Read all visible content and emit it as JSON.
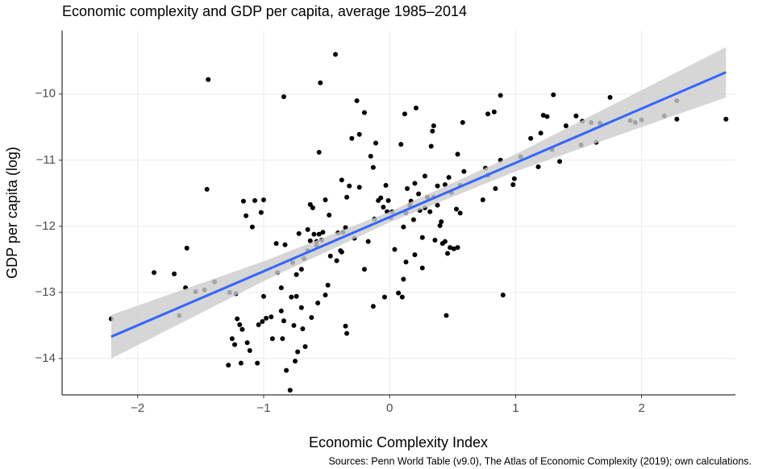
{
  "chart_data": {
    "type": "scatter",
    "title": "Economic complexity and GDP per capita, average 1985–2014",
    "x_label": "Economic Complexity Index",
    "y_label": "GDP per capita (log)",
    "caption": "Sources: Penn World Table (v9.0), The Atlas of Economic Complexity (2019); own calculations.",
    "xlim": [
      -2.6,
      2.745
    ],
    "ylim": [
      -14.55,
      -9.04
    ],
    "xticks": [
      {
        "value": -2,
        "label": "−2"
      },
      {
        "value": -1,
        "label": "−1"
      },
      0,
      1,
      2
    ],
    "yticks": [
      {
        "value": -10,
        "label": "−10"
      },
      {
        "value": -11,
        "label": "−11"
      },
      {
        "value": -12,
        "label": "−12"
      },
      {
        "value": -13,
        "label": "−13"
      },
      {
        "value": -14,
        "label": "−14"
      }
    ],
    "grid": true,
    "points": {
      "color": "#000000",
      "x": [
        -2.21,
        -1.87,
        -1.71,
        -1.67,
        -1.62,
        -1.61,
        -1.54,
        -1.47,
        -1.45,
        -1.39,
        -1.44,
        -1.28,
        -1.27,
        -1.25,
        -1.23,
        -1.22,
        -1.21,
        -1.19,
        -1.18,
        -1.17,
        -1.16,
        -1.14,
        -1.13,
        -1.11,
        -1.09,
        -1.07,
        -1.05,
        -1.04,
        -1.02,
        -1.0,
        -1.0,
        -1.01,
        -0.98,
        -0.94,
        -0.93,
        -0.9,
        -0.89,
        -0.86,
        -0.86,
        -0.85,
        -0.84,
        -0.84,
        -0.83,
        -0.82,
        -0.79,
        -0.78,
        -0.77,
        -0.76,
        -0.75,
        -0.74,
        -0.74,
        -0.73,
        -0.72,
        -0.7,
        -0.7,
        -0.69,
        -0.68,
        -0.67,
        -0.65,
        -0.65,
        -0.63,
        -0.63,
        -0.62,
        -0.61,
        -0.6,
        -0.58,
        -0.58,
        -0.57,
        -0.56,
        -0.55,
        -0.56,
        -0.54,
        -0.53,
        -0.51,
        -0.51,
        -0.49,
        -0.48,
        -0.47,
        -0.43,
        -0.42,
        -0.41,
        -0.39,
        -0.38,
        -0.38,
        -0.37,
        -0.35,
        -0.35,
        -0.34,
        -0.34,
        -0.32,
        -0.3,
        -0.28,
        -0.26,
        -0.24,
        -0.24,
        -0.2,
        -0.2,
        -0.17,
        -0.15,
        -0.13,
        -0.13,
        -0.12,
        -0.11,
        -0.09,
        -0.07,
        -0.05,
        -0.04,
        -0.03,
        -0.02,
        -0.01,
        0.01,
        0.02,
        0.04,
        0.07,
        0.09,
        0.1,
        0.11,
        0.11,
        0.12,
        0.13,
        0.13,
        0.14,
        0.16,
        0.17,
        0.19,
        0.2,
        0.2,
        0.21,
        0.23,
        0.24,
        0.26,
        0.26,
        0.28,
        0.28,
        0.3,
        0.32,
        0.33,
        0.34,
        0.35,
        0.35,
        0.36,
        0.38,
        0.38,
        0.4,
        0.41,
        0.42,
        0.44,
        0.44,
        0.45,
        0.46,
        0.47,
        0.48,
        0.49,
        0.51,
        0.53,
        0.54,
        0.54,
        0.56,
        0.56,
        0.58,
        0.59,
        0.74,
        0.76,
        0.78,
        0.78,
        0.83,
        0.84,
        0.88,
        0.88,
        0.9,
        0.98,
        0.99,
        1.04,
        1.12,
        1.18,
        1.2,
        1.22,
        1.25,
        1.29,
        1.3,
        1.35,
        1.4,
        1.48,
        1.52,
        1.53,
        1.6,
        1.64,
        1.67,
        1.75,
        1.91,
        1.95,
        2.0,
        2.18,
        2.28,
        2.28,
        2.67
      ],
      "y": [
        -13.4,
        -12.7,
        -12.72,
        -13.35,
        -12.93,
        -12.33,
        -12.99,
        -12.96,
        -11.44,
        -12.84,
        -9.78,
        -14.1,
        -13.0,
        -13.7,
        -13.79,
        -13.02,
        -13.4,
        -13.49,
        -14.07,
        -13.56,
        -11.62,
        -11.84,
        -13.76,
        -13.88,
        -12.01,
        -11.61,
        -14.07,
        -13.49,
        -11.79,
        -11.6,
        -13.06,
        -13.44,
        -13.39,
        -13.37,
        -13.7,
        -12.26,
        -12.7,
        -12.93,
        -13.28,
        -13.7,
        -10.04,
        -13.43,
        -12.28,
        -14.18,
        -14.48,
        -13.07,
        -12.55,
        -13.5,
        -14.04,
        -12.73,
        -13.06,
        -13.9,
        -12.11,
        -12.65,
        -13.23,
        -13.55,
        -12.49,
        -13.82,
        -12.37,
        -12.05,
        -12.22,
        -11.67,
        -13.38,
        -11.72,
        -12.12,
        -12.29,
        -12.23,
        -13.16,
        -12.12,
        -9.83,
        -10.88,
        -12.21,
        -12.09,
        -11.6,
        -13.04,
        -12.89,
        -11.83,
        -12.45,
        -9.4,
        -12.52,
        -12.1,
        -12.37,
        -12.39,
        -11.3,
        -12.09,
        -12.02,
        -13.51,
        -13.62,
        -11.56,
        -11.39,
        -10.67,
        -12.18,
        -10.1,
        -11.41,
        -10.61,
        -10.28,
        -12.65,
        -12.23,
        -10.94,
        -13.21,
        -11.11,
        -11.89,
        -10.74,
        -11.61,
        -11.57,
        -11.71,
        -13.07,
        -11.38,
        -11.78,
        -11.61,
        -11.87,
        -11.78,
        -12.35,
        -13.01,
        -10.76,
        -13.07,
        -12.01,
        -12.8,
        -10.3,
        -12.54,
        -11.8,
        -11.43,
        -11.68,
        -11.62,
        -11.9,
        -12.43,
        -11.35,
        -10.21,
        -11.51,
        -11.76,
        -12.17,
        -12.63,
        -11.72,
        -11.24,
        -11.56,
        -11.78,
        -10.79,
        -10.56,
        -10.48,
        -11.56,
        -12.21,
        -11.39,
        -11.68,
        -11.99,
        -11.93,
        -12.26,
        -11.37,
        -12.23,
        -13.35,
        -12.41,
        -11.26,
        -12.32,
        -11.49,
        -12.34,
        -11.74,
        -12.32,
        -10.91,
        -11.8,
        -11.38,
        -10.43,
        -11.17,
        -11.6,
        -11.12,
        -11.23,
        -10.3,
        -10.27,
        -11.43,
        -11.0,
        -10.02,
        -13.04,
        -11.37,
        -11.28,
        -10.95,
        -10.67,
        -11.1,
        -10.59,
        -10.32,
        -10.34,
        -10.84,
        -10.01,
        -11.02,
        -10.48,
        -10.33,
        -10.77,
        -10.41,
        -10.43,
        -10.73,
        -10.44,
        -10.05,
        -10.4,
        -10.43,
        -10.39,
        -10.33,
        -10.1,
        -10.38,
        -10.38
      ]
    },
    "fit": {
      "color": "#3366ff",
      "band_color": "#cccccc",
      "x": [
        -2.21,
        -1,
        0,
        1,
        2.67
      ],
      "y": [
        -13.67,
        -12.68,
        -11.86,
        -11.04,
        -9.67
      ],
      "lower": [
        -14.0,
        -12.83,
        -11.94,
        -11.17,
        -10.05
      ],
      "upper": [
        -13.34,
        -12.53,
        -11.78,
        -10.91,
        -9.29
      ]
    }
  }
}
